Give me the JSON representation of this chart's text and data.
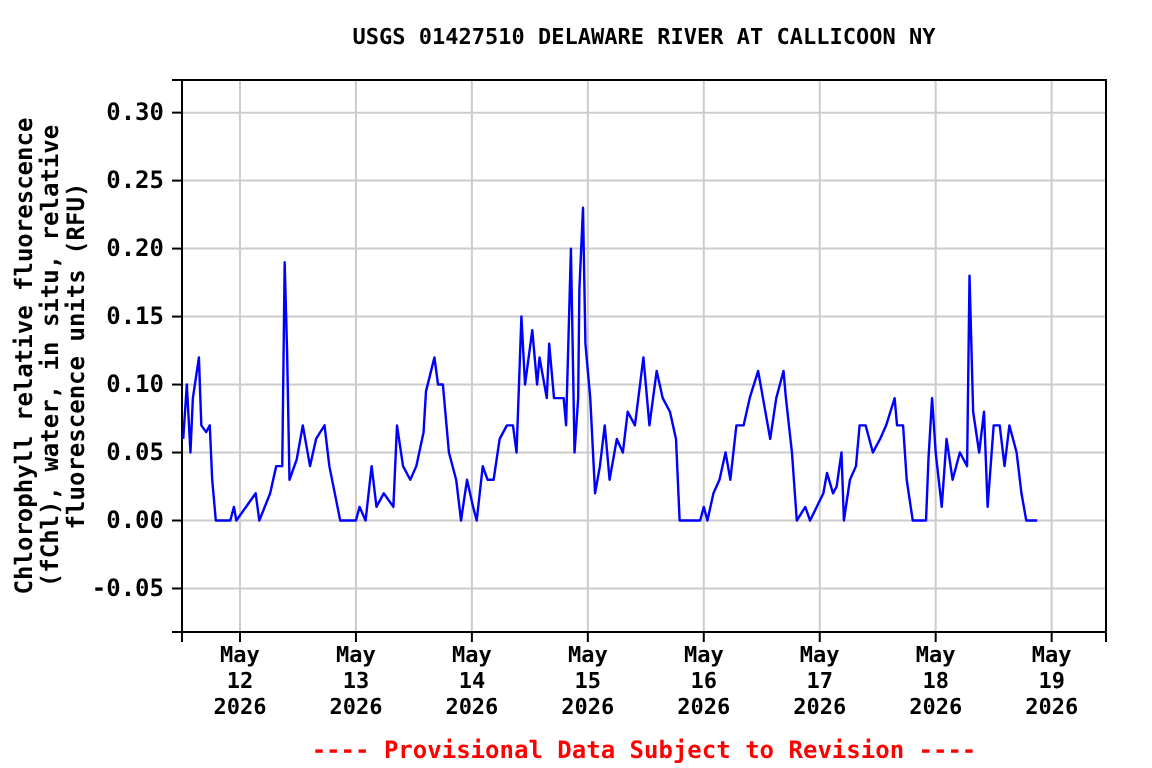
{
  "chart_data": {
    "type": "line",
    "title": "USGS 01427510 DELAWARE RIVER AT CALLICOON NY",
    "ylabel": "Chlorophyll relative fluorescence\n(fChl), water, in situ, relative\nfluorescence units (RFU)",
    "annotations": [
      "---- Provisional Data Subject to Revision ----"
    ],
    "xlim": [
      "2026-05-11T12:00",
      "2026-05-19T11:15"
    ],
    "xticks": [
      {
        "value": "2026-05-12",
        "label": "May\n12\n2026"
      },
      {
        "value": "2026-05-13",
        "label": "May\n13\n2026"
      },
      {
        "value": "2026-05-14",
        "label": "May\n14\n2026"
      },
      {
        "value": "2026-05-15",
        "label": "May\n15\n2026"
      },
      {
        "value": "2026-05-16",
        "label": "May\n16\n2026"
      },
      {
        "value": "2026-05-17",
        "label": "May\n17\n2026"
      },
      {
        "value": "2026-05-18",
        "label": "May\n18\n2026"
      },
      {
        "value": "2026-05-19",
        "label": "May\n19\n2026"
      }
    ],
    "ylim": [
      -0.082,
      0.324
    ],
    "yticks": [
      {
        "value": -0.05,
        "label": "-0.05"
      },
      {
        "value": 0,
        "label": "0.00"
      },
      {
        "value": 0.05,
        "label": "0.05"
      },
      {
        "value": 0.1,
        "label": "0.10"
      },
      {
        "value": 0.15,
        "label": "0.15"
      },
      {
        "value": 0.2,
        "label": "0.20"
      },
      {
        "value": 0.25,
        "label": "0.25"
      },
      {
        "value": 0.3,
        "label": "0.30"
      }
    ],
    "grid": true,
    "series": [
      {
        "color": "#0000ff",
        "x": [
          "2026-05-11T12:15",
          "2026-05-11T13:00",
          "2026-05-11T13:45",
          "2026-05-11T14:15",
          "2026-05-11T15:30",
          "2026-05-11T16:00",
          "2026-05-11T17:00",
          "2026-05-11T17:45",
          "2026-05-11T18:15",
          "2026-05-11T19:00",
          "2026-05-11T22:00",
          "2026-05-11T22:45",
          "2026-05-11T23:15",
          "2026-05-12T03:15",
          "2026-05-12T04:00",
          "2026-05-12T06:15",
          "2026-05-12T07:30",
          "2026-05-12T08:45",
          "2026-05-12T09:15",
          "2026-05-12T09:45",
          "2026-05-12T10:15",
          "2026-05-12T11:45",
          "2026-05-12T13:00",
          "2026-05-12T14:30",
          "2026-05-12T15:45",
          "2026-05-12T17:30",
          "2026-05-12T18:30",
          "2026-05-12T20:45",
          "2026-05-13T00:00",
          "2026-05-13T00:45",
          "2026-05-13T02:00",
          "2026-05-13T03:15",
          "2026-05-13T04:15",
          "2026-05-13T05:45",
          "2026-05-13T07:45",
          "2026-05-13T08:30",
          "2026-05-13T09:45",
          "2026-05-13T11:15",
          "2026-05-13T12:30",
          "2026-05-13T14:00",
          "2026-05-13T14:30",
          "2026-05-13T16:15",
          "2026-05-13T17:00",
          "2026-05-13T18:00",
          "2026-05-13T19:15",
          "2026-05-13T20:45",
          "2026-05-13T21:45",
          "2026-05-13T23:00",
          "2026-05-14T00:15",
          "2026-05-14T01:00",
          "2026-05-14T02:15",
          "2026-05-14T03:15",
          "2026-05-14T04:30",
          "2026-05-14T05:45",
          "2026-05-14T07:15",
          "2026-05-14T08:30",
          "2026-05-14T09:15",
          "2026-05-14T10:15",
          "2026-05-14T11:00",
          "2026-05-14T12:30",
          "2026-05-14T13:30",
          "2026-05-14T14:00",
          "2026-05-14T15:30",
          "2026-05-14T16:00",
          "2026-05-14T17:00",
          "2026-05-14T19:00",
          "2026-05-14T19:30",
          "2026-05-14T20:30",
          "2026-05-14T21:15",
          "2026-05-14T22:00",
          "2026-05-14T22:15",
          "2026-05-14T23:00",
          "2026-05-14T23:30",
          "2026-05-15T00:30",
          "2026-05-15T01:30",
          "2026-05-15T02:30",
          "2026-05-15T03:30",
          "2026-05-15T04:30",
          "2026-05-15T06:00",
          "2026-05-15T07:15",
          "2026-05-15T08:15",
          "2026-05-15T09:45",
          "2026-05-15T11:30",
          "2026-05-15T12:45",
          "2026-05-15T14:15",
          "2026-05-15T15:30",
          "2026-05-15T17:00",
          "2026-05-15T18:15",
          "2026-05-15T19:00",
          "2026-05-15T23:15",
          "2026-05-16T00:00",
          "2026-05-16T00:45",
          "2026-05-16T02:00",
          "2026-05-16T03:15",
          "2026-05-16T04:30",
          "2026-05-16T05:30",
          "2026-05-16T06:45",
          "2026-05-16T08:15",
          "2026-05-16T09:30",
          "2026-05-16T11:15",
          "2026-05-16T12:15",
          "2026-05-16T13:45",
          "2026-05-16T15:00",
          "2026-05-16T16:30",
          "2026-05-16T17:00",
          "2026-05-16T18:15",
          "2026-05-16T19:15",
          "2026-05-16T21:00",
          "2026-05-16T22:00",
          "2026-05-17T00:45",
          "2026-05-17T01:30",
          "2026-05-17T02:45",
          "2026-05-17T03:30",
          "2026-05-17T04:30",
          "2026-05-17T05:00",
          "2026-05-17T06:15",
          "2026-05-17T07:30",
          "2026-05-17T08:15",
          "2026-05-17T09:30",
          "2026-05-17T11:00",
          "2026-05-17T12:30",
          "2026-05-17T13:45",
          "2026-05-17T15:30",
          "2026-05-17T16:00",
          "2026-05-17T17:15",
          "2026-05-17T18:00",
          "2026-05-17T19:15",
          "2026-05-17T22:00",
          "2026-05-17T22:30",
          "2026-05-17T23:15",
          "2026-05-18T00:00",
          "2026-05-18T01:15",
          "2026-05-18T02:15",
          "2026-05-18T03:30",
          "2026-05-18T05:00",
          "2026-05-18T06:30",
          "2026-05-18T07:00",
          "2026-05-18T07:45",
          "2026-05-18T09:00",
          "2026-05-18T10:00",
          "2026-05-18T10:45",
          "2026-05-18T12:00",
          "2026-05-18T13:15",
          "2026-05-18T14:15",
          "2026-05-18T15:15",
          "2026-05-18T16:45",
          "2026-05-18T17:45",
          "2026-05-18T18:45",
          "2026-05-18T21:00"
        ],
        "values": [
          0.06,
          0.1,
          0.05,
          0.09,
          0.12,
          0.07,
          0.065,
          0.07,
          0.03,
          0.0,
          0.0,
          0.01,
          0.0,
          0.02,
          0.0,
          0.02,
          0.04,
          0.04,
          0.19,
          0.125,
          0.03,
          0.045,
          0.07,
          0.04,
          0.06,
          0.07,
          0.04,
          0.0,
          0.0,
          0.01,
          0.0,
          0.04,
          0.01,
          0.02,
          0.01,
          0.07,
          0.04,
          0.03,
          0.04,
          0.065,
          0.095,
          0.12,
          0.1,
          0.1,
          0.05,
          0.03,
          0.0,
          0.03,
          0.01,
          0.0,
          0.04,
          0.03,
          0.03,
          0.06,
          0.07,
          0.07,
          0.05,
          0.15,
          0.1,
          0.14,
          0.1,
          0.12,
          0.09,
          0.13,
          0.09,
          0.09,
          0.07,
          0.2,
          0.05,
          0.09,
          0.17,
          0.23,
          0.13,
          0.09,
          0.02,
          0.04,
          0.07,
          0.03,
          0.06,
          0.05,
          0.08,
          0.07,
          0.12,
          0.07,
          0.11,
          0.09,
          0.08,
          0.06,
          0.0,
          0.0,
          0.01,
          0.0,
          0.02,
          0.03,
          0.05,
          0.03,
          0.07,
          0.07,
          0.09,
          0.11,
          0.09,
          0.06,
          0.09,
          0.11,
          0.09,
          0.05,
          0.0,
          0.01,
          0.0,
          0.02,
          0.035,
          0.02,
          0.025,
          0.05,
          0.0,
          0.03,
          0.04,
          0.07,
          0.07,
          0.05,
          0.06,
          0.07,
          0.09,
          0.07,
          0.07,
          0.03,
          0.0,
          0.0,
          0.045,
          0.09,
          0.05,
          0.01,
          0.06,
          0.03,
          0.05,
          0.04,
          0.18,
          0.08,
          0.05,
          0.08,
          0.01,
          0.07,
          0.07,
          0.04,
          0.07,
          0.05,
          0.02,
          0.0,
          0.0
        ]
      }
    ]
  }
}
